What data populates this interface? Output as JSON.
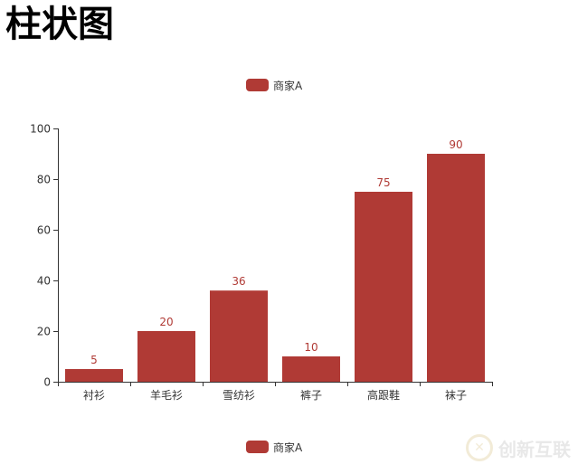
{
  "page": {
    "title": "柱状图"
  },
  "legend": {
    "label": "商家A"
  },
  "watermark": {
    "text": "创新互联"
  },
  "colors": {
    "bar": "#b03a35",
    "axis": "#333333",
    "label": "#b03a35"
  },
  "chart_data": {
    "type": "bar",
    "categories": [
      "衬衫",
      "羊毛衫",
      "雪纺衫",
      "裤子",
      "高跟鞋",
      "袜子"
    ],
    "series": [
      {
        "name": "商家A",
        "values": [
          5,
          20,
          36,
          10,
          75,
          90
        ]
      }
    ],
    "ylim": [
      0,
      100
    ],
    "yticks": [
      0,
      20,
      40,
      60,
      80,
      100
    ],
    "grid": false,
    "legend_placement": "top-center and bottom-center"
  }
}
